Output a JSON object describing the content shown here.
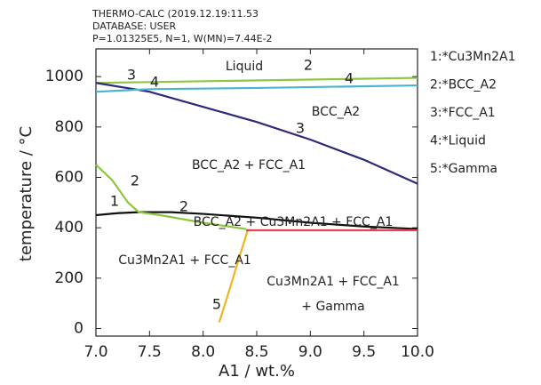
{
  "chart_data": {
    "type": "line",
    "header": [
      "THERMO-CALC (2019.12.19:11.53",
      "DATABASE: USER",
      "P=1.01325E5, N=1, W(MN)=7.44E-2"
    ],
    "xlabel": "A1 / wt.%",
    "ylabel": "temperature / °C",
    "xlim": [
      7,
      10
    ],
    "ylim": [
      -30,
      1110
    ],
    "xticks": [
      {
        "value": 7,
        "label": "7.0"
      },
      {
        "value": 7.5,
        "label": "7.5"
      },
      {
        "value": 8,
        "label": "8.0"
      },
      {
        "value": 8.5,
        "label": "8.5"
      },
      {
        "value": 9,
        "label": "9.0"
      },
      {
        "value": 9.5,
        "label": "9.5"
      },
      {
        "value": 10,
        "label": "10.0"
      }
    ],
    "yticks": [
      0,
      200,
      400,
      600,
      800,
      1000
    ],
    "series": [
      {
        "name": "1:*Cu3Mn2A1",
        "color": "#111111",
        "x": [
          7.0,
          7.2,
          7.4,
          7.7,
          8.0,
          8.5,
          9.0,
          9.5,
          10.0
        ],
        "values": [
          450,
          458,
          462,
          462,
          455,
          440,
          420,
          405,
          395
        ]
      },
      {
        "name": "2:*BCC_A2",
        "color": "#8dc63f",
        "x": [
          7.0,
          10.0,
          null,
          7.0,
          7.15,
          7.3,
          7.4,
          7.6,
          8.0,
          8.4
        ],
        "values": [
          975,
          995,
          null,
          650,
          590,
          500,
          462,
          450,
          420,
          395
        ]
      },
      {
        "name": "3:*FCC_A1",
        "color": "#2e2a7a",
        "x": [
          7.0,
          7.5,
          8.0,
          8.5,
          9.0,
          9.5,
          10.0
        ],
        "values": [
          975,
          940,
          880,
          820,
          750,
          670,
          575
        ]
      },
      {
        "name": "4:*Liquid",
        "color": "#4bb3d0",
        "x": [
          7.0,
          7.5,
          8.5,
          10.0
        ],
        "values": [
          940,
          950,
          955,
          965
        ]
      },
      {
        "name": "5:*Gamma",
        "color": "#f0b323",
        "x": [
          8.15,
          8.25,
          8.35,
          8.42
        ],
        "values": [
          25,
          160,
          300,
          395
        ]
      },
      {
        "color": "#e8415a",
        "x": [
          8.4,
          10.0
        ],
        "values": [
          390,
          390
        ]
      }
    ],
    "annotations": [
      "Liquid",
      "BCC_A2",
      "BCC_A2 + FCC_A1",
      "BCC_A2 + Cu3Mn2A1 + FCC_A1",
      "Cu3Mn2A1 + FCC_A1",
      "Cu3Mn2A1 + FCC_A1",
      "+ Gamma",
      "3",
      "2",
      "4",
      "4",
      "3",
      "2",
      "1",
      "2",
      "5"
    ]
  }
}
